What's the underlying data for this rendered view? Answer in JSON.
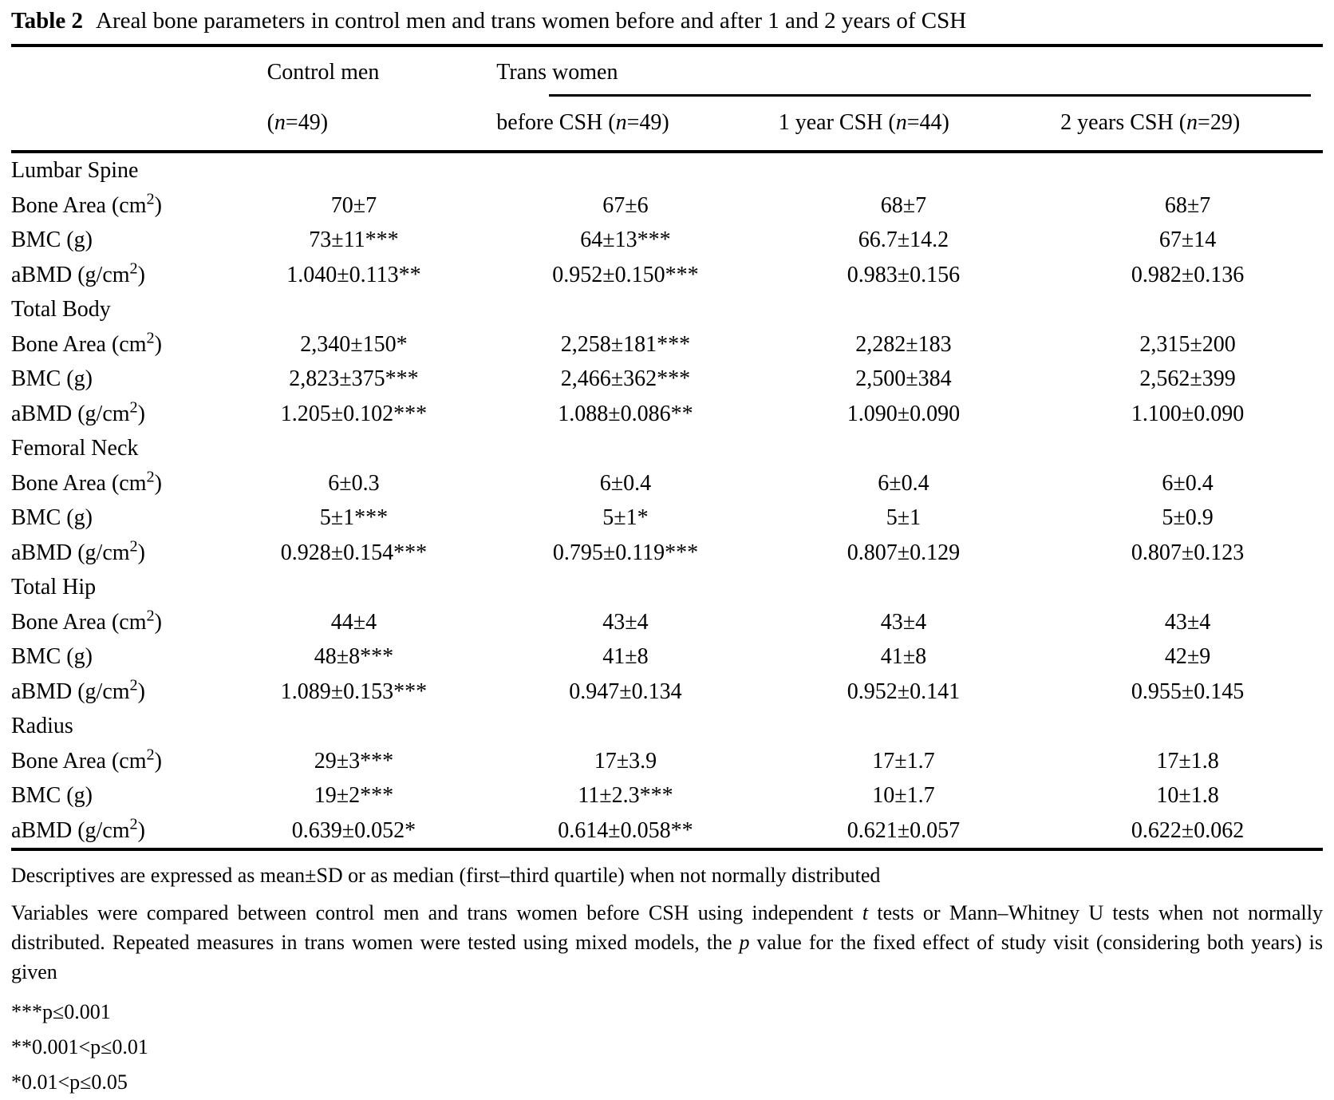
{
  "title": {
    "label": "Table 2",
    "text": "Areal bone parameters in control men and trans women before and after 1 and 2 years of CSH"
  },
  "table": {
    "group_headers": {
      "control": "Control men",
      "trans": "Trans women"
    },
    "col_headers": {
      "control_n": [
        {
          "t": "("
        },
        {
          "i": "n"
        },
        {
          "t": "=49)"
        }
      ],
      "before": [
        {
          "t": "before CSH ("
        },
        {
          "i": "n"
        },
        {
          "t": "=49)"
        }
      ],
      "year1": [
        {
          "t": "1 year CSH ("
        },
        {
          "i": "n"
        },
        {
          "t": "=44)"
        }
      ],
      "year2": [
        {
          "t": "2 years CSH ("
        },
        {
          "i": "n"
        },
        {
          "t": "=29)"
        }
      ]
    },
    "sections": [
      {
        "name": "Lumbar Spine",
        "rows": [
          {
            "label": "Bone Area (cm²)",
            "values": [
              "70±7",
              "67±6",
              "68±7",
              "68±7"
            ]
          },
          {
            "label": "BMC (g)",
            "values": [
              "73±11***",
              "64±13***",
              "66.7±14.2",
              "67±14"
            ]
          },
          {
            "label": "aBMD (g/cm²)",
            "values": [
              "1.040±0.113**",
              "0.952±0.150***",
              "0.983±0.156",
              "0.982±0.136"
            ]
          }
        ]
      },
      {
        "name": "Total Body",
        "rows": [
          {
            "label": "Bone Area (cm²)",
            "values": [
              "2,340±150*",
              "2,258±181***",
              "2,282±183",
              "2,315±200"
            ]
          },
          {
            "label": "BMC (g)",
            "values": [
              "2,823±375***",
              "2,466±362***",
              "2,500±384",
              "2,562±399"
            ]
          },
          {
            "label": "aBMD (g/cm²)",
            "values": [
              "1.205±0.102***",
              "1.088±0.086**",
              "1.090±0.090",
              "1.100±0.090"
            ]
          }
        ]
      },
      {
        "name": "Femoral Neck",
        "rows": [
          {
            "label": "Bone Area (cm²)",
            "values": [
              "6±0.3",
              "6±0.4",
              "6±0.4",
              "6±0.4"
            ]
          },
          {
            "label": "BMC (g)",
            "values": [
              "5±1***",
              "5±1*",
              "5±1",
              "5±0.9"
            ]
          },
          {
            "label": "aBMD (g/cm²)",
            "values": [
              "0.928±0.154***",
              "0.795±0.119***",
              "0.807±0.129",
              "0.807±0.123"
            ]
          }
        ]
      },
      {
        "name": "Total Hip",
        "rows": [
          {
            "label": "Bone Area (cm²)",
            "values": [
              "44±4",
              "43±4",
              "43±4",
              "43±4"
            ]
          },
          {
            "label": "BMC (g)",
            "values": [
              "48±8***",
              "41±8",
              "41±8",
              "42±9"
            ]
          },
          {
            "label": "aBMD (g/cm²)",
            "values": [
              "1.089±0.153***",
              "0.947±0.134",
              "0.952±0.141",
              "0.955±0.145"
            ]
          }
        ]
      },
      {
        "name": "Radius",
        "rows": [
          {
            "label": "Bone Area (cm²)",
            "values": [
              "29±3***",
              "17±3.9",
              "17±1.7",
              "17±1.8"
            ]
          },
          {
            "label": "BMC (g)",
            "values": [
              "19±2***",
              "11±2.3***",
              "10±1.7",
              "10±1.8"
            ]
          },
          {
            "label": "aBMD (g/cm²)",
            "values": [
              "0.639±0.052*",
              "0.614±0.058**",
              "0.621±0.057",
              "0.622±0.062"
            ]
          }
        ]
      }
    ]
  },
  "footnotes": {
    "descriptives": "Descriptives are expressed as mean±SD or as median (first–third quartile) when not normally distributed",
    "methods_parts": [
      {
        "t": "Variables were compared between control men and trans women before CSH using independent "
      },
      {
        "i": "t"
      },
      {
        "t": " tests or Mann–Whitney U tests when not normally distributed. Repeated measures in trans women were tested using mixed models, the "
      },
      {
        "i": "p"
      },
      {
        "t": " value for the fixed effect of study visit (considering both years) is given"
      }
    ],
    "significance": [
      "***p≤0.001",
      "**0.001<p≤0.01",
      "*0.01<p≤0.05"
    ]
  }
}
